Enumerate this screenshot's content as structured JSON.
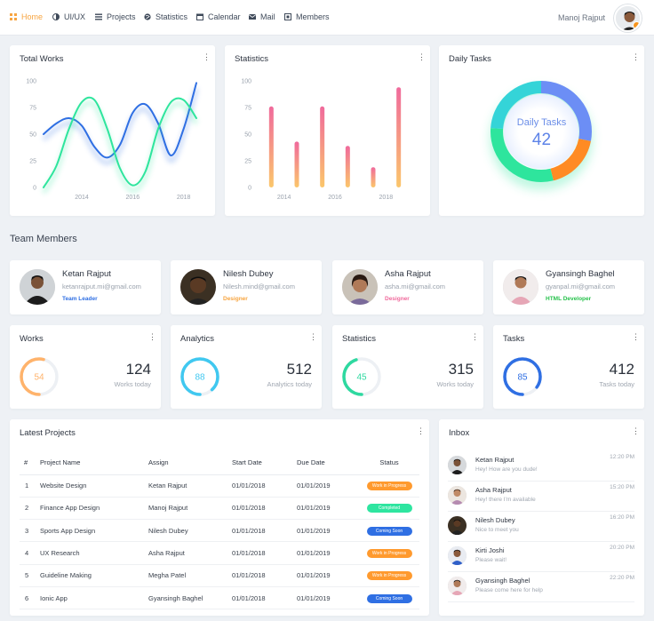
{
  "nav": {
    "items": [
      {
        "label": "Home",
        "icon": "grid-icon"
      },
      {
        "label": "UI/UX",
        "icon": "palette-icon"
      },
      {
        "label": "Projects",
        "icon": "list-icon"
      },
      {
        "label": "Statistics",
        "icon": "globe-icon"
      },
      {
        "label": "Calendar",
        "icon": "calendar-icon"
      },
      {
        "label": "Mail",
        "icon": "mail-icon"
      },
      {
        "label": "Members",
        "icon": "members-icon"
      }
    ],
    "user": "Manoj Rajput"
  },
  "colors": {
    "accent": "#f7a541",
    "blue": "#2f6fe3",
    "green": "#2ee59d",
    "pink": "#f06a9c",
    "orange": "#ff8b24"
  },
  "cards": {
    "total_works": "Total Works",
    "statistics": "Statistics",
    "daily_tasks": "Daily Tasks",
    "daily_label": "Daily Tasks",
    "daily_value": "42"
  },
  "chart_data": [
    {
      "type": "line",
      "title": "Total Works",
      "xticks": [
        "2014",
        "2016",
        "2018"
      ],
      "yticks": [
        "0",
        "25",
        "50",
        "75",
        "100"
      ],
      "ylim": [
        0,
        100
      ],
      "series": [
        {
          "color": "#2f6fe3",
          "x": [
            0,
            0.5,
            1,
            1.5,
            2,
            2.5,
            3,
            3.5,
            4,
            4.5,
            5,
            5.5,
            6
          ],
          "y": [
            50,
            60,
            65,
            58,
            38,
            28,
            40,
            70,
            78,
            60,
            30,
            55,
            98
          ]
        },
        {
          "color": "#2ee59d",
          "x": [
            0,
            0.5,
            1,
            1.5,
            2,
            2.5,
            3,
            3.5,
            4,
            4.5,
            5,
            5.5,
            6
          ],
          "y": [
            0,
            20,
            55,
            80,
            82,
            55,
            18,
            2,
            15,
            55,
            80,
            82,
            65
          ]
        }
      ]
    },
    {
      "type": "bar",
      "title": "Statistics",
      "categories": [
        "1",
        "2",
        "3",
        "4",
        "5",
        "6"
      ],
      "xticks": [
        "2014",
        "2016",
        "2018"
      ],
      "yticks": [
        "0",
        "25",
        "50",
        "75",
        "100"
      ],
      "ylim": [
        0,
        100
      ],
      "values": [
        76,
        43,
        76,
        39,
        19,
        94
      ]
    },
    {
      "type": "pie",
      "title": "Daily Tasks",
      "slices": [
        {
          "color": "#6c8ef5",
          "value": 28
        },
        {
          "color": "#ff8b24",
          "value": 18
        },
        {
          "color": "#2ee59d",
          "value": 30
        },
        {
          "color": "#34d4d8",
          "value": 24
        }
      ]
    }
  ],
  "team": {
    "title": "Team Members",
    "members": [
      {
        "name": "Ketan Rajput",
        "email": "ketanrajput.mi@gmail.com",
        "role": "Team Leader",
        "role_color": "#2f6fe3"
      },
      {
        "name": "Nilesh Dubey",
        "email": "Nilesh.mind@gmail.com",
        "role": "Designer",
        "role_color": "#f7a541"
      },
      {
        "name": "Asha Rajput",
        "email": "asha.mi@gmail.com",
        "role": "Designer",
        "role_color": "#f06a9c"
      },
      {
        "name": "Gyansingh Baghel",
        "email": "gyanpal.mi@gmail.com",
        "role": "HTML Developer",
        "role_color": "#27c24c"
      }
    ]
  },
  "stats": [
    {
      "title": "Works",
      "ring": "54",
      "value": "124",
      "sub": "Works today",
      "color": "#ffb36b",
      "fraction": 0.54
    },
    {
      "title": "Analytics",
      "ring": "88",
      "value": "512",
      "sub": "Analytics today",
      "color": "#40c8f0",
      "fraction": 0.88
    },
    {
      "title": "Statistics",
      "ring": "45",
      "value": "315",
      "sub": "Works today",
      "color": "#2ed9a0",
      "fraction": 0.45
    },
    {
      "title": "Tasks",
      "ring": "85",
      "value": "412",
      "sub": "Tasks today",
      "color": "#2f6fe3",
      "fraction": 0.85
    }
  ],
  "projects": {
    "title": "Latest Projects",
    "headers": [
      "#",
      "Project Name",
      "Assign",
      "Start Date",
      "Due Date",
      "Status"
    ],
    "rows": [
      {
        "n": "1",
        "name": "Website Design",
        "assign": "Ketan Rajput",
        "start": "01/01/2018",
        "due": "01/01/2019",
        "status": "Work in Progress",
        "color": "#ff9a2e"
      },
      {
        "n": "2",
        "name": "Finance App Design",
        "assign": "Manoj Rajput",
        "start": "01/01/2018",
        "due": "01/01/2019",
        "status": "Completed",
        "color": "#2ee5a0"
      },
      {
        "n": "3",
        "name": "Sports App Design",
        "assign": "Nilesh Dubey",
        "start": "01/01/2018",
        "due": "01/01/2019",
        "status": "Coming Soon",
        "color": "#2f6fe3"
      },
      {
        "n": "4",
        "name": "UX Research",
        "assign": "Asha Rajput",
        "start": "01/01/2018",
        "due": "01/01/2019",
        "status": "Work in Progress",
        "color": "#ff9a2e"
      },
      {
        "n": "5",
        "name": "Guideline Making",
        "assign": "Megha Patel",
        "start": "01/01/2018",
        "due": "01/01/2019",
        "status": "Work in Progress",
        "color": "#ff9a2e"
      },
      {
        "n": "6",
        "name": "Ionic App",
        "assign": "Gyansingh Baghel",
        "start": "01/01/2018",
        "due": "01/01/2019",
        "status": "Coming Soon",
        "color": "#2f6fe3"
      }
    ]
  },
  "inbox": {
    "title": "Inbox",
    "items": [
      {
        "name": "Ketan Rajput",
        "msg": "Hey! How are you dude!",
        "time": "12:20 PM"
      },
      {
        "name": "Asha Rajput",
        "msg": "Hey! there I'm available",
        "time": "15:20 PM"
      },
      {
        "name": "Nilesh Dubey",
        "msg": "Nice to meet you",
        "time": "16:20 PM"
      },
      {
        "name": "Kirti Joshi",
        "msg": "Please wait!",
        "time": "20:20 PM"
      },
      {
        "name": "Gyansingh Baghel",
        "msg": "Please come here for help",
        "time": "22:20 PM"
      }
    ]
  }
}
